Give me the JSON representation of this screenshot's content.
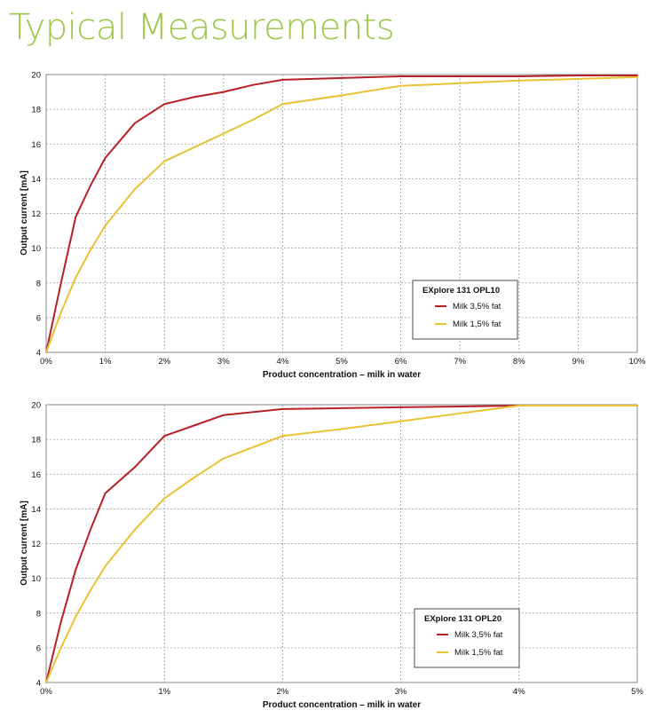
{
  "page": {
    "title": "Typical Measurements"
  },
  "colors": {
    "title_green": "#9dc64a",
    "series_dark": "#b72025",
    "series_light": "#e8c232",
    "grid": "#9a9a9a",
    "frame": "#888888"
  },
  "chart_data": [
    {
      "type": "line",
      "title": "",
      "xlabel": "Product concentration – milk in water",
      "ylabel": "Output current [mA]",
      "xlim": [
        0,
        10
      ],
      "ylim": [
        4,
        20
      ],
      "x_ticks": [
        0,
        1,
        2,
        3,
        4,
        5,
        6,
        7,
        8,
        9,
        10
      ],
      "x_tick_labels": [
        "0%",
        "1%",
        "2%",
        "3%",
        "4%",
        "5%",
        "6%",
        "7%",
        "8%",
        "9%",
        "10%"
      ],
      "y_ticks": [
        4,
        6,
        8,
        10,
        12,
        14,
        16,
        18,
        20
      ],
      "y_tick_labels": [
        "4",
        "6",
        "8",
        "10",
        "12",
        "14",
        "16",
        "18",
        "20"
      ],
      "grid": true,
      "legend": {
        "title": "EXplore 131 OPL10",
        "position": "bottom-right"
      },
      "series": [
        {
          "name": "Milk 3,5% fat",
          "x": [
            0,
            0.25,
            0.5,
            0.75,
            1,
            1.25,
            1.5,
            2,
            2.5,
            3,
            3.5,
            4,
            5,
            6,
            7,
            8,
            9,
            10
          ],
          "y": [
            4,
            8,
            11.8,
            13.6,
            15.2,
            16.2,
            17.2,
            18.3,
            18.7,
            19.0,
            19.4,
            19.7,
            19.8,
            19.9,
            19.9,
            19.9,
            19.95,
            19.95
          ]
        },
        {
          "name": "Milk 1,5% fat",
          "x": [
            0,
            0.25,
            0.5,
            0.75,
            1,
            1.5,
            2,
            2.5,
            3,
            3.5,
            4,
            5,
            6,
            7,
            8,
            9,
            10
          ],
          "y": [
            4,
            6.3,
            8.3,
            9.9,
            11.3,
            13.4,
            15.0,
            15.8,
            16.6,
            17.4,
            18.3,
            18.8,
            19.35,
            19.5,
            19.65,
            19.75,
            19.85
          ]
        }
      ]
    },
    {
      "type": "line",
      "title": "",
      "xlabel": "Product concentration – milk in water",
      "ylabel": "Output current [mA]",
      "xlim": [
        0,
        5
      ],
      "ylim": [
        4,
        20
      ],
      "x_ticks": [
        0,
        1,
        2,
        3,
        4,
        5
      ],
      "x_tick_labels": [
        "0%",
        "1%",
        "2%",
        "3%",
        "4%",
        "5%"
      ],
      "y_ticks": [
        4,
        6,
        8,
        10,
        12,
        14,
        16,
        18,
        20
      ],
      "y_tick_labels": [
        "4",
        "6",
        "8",
        "10",
        "12",
        "14",
        "16",
        "18",
        "20"
      ],
      "grid": true,
      "legend": {
        "title": "EXplore 131 OPL20",
        "position": "bottom-right"
      },
      "series": [
        {
          "name": "Milk 3,5% fat",
          "x": [
            0,
            0.125,
            0.25,
            0.375,
            0.5,
            0.75,
            1,
            1.25,
            1.5,
            2,
            2.5,
            3,
            3.5,
            4,
            4.5,
            5
          ],
          "y": [
            4,
            7.5,
            10.5,
            12.8,
            14.9,
            16.4,
            18.2,
            18.8,
            19.4,
            19.75,
            19.8,
            19.85,
            19.9,
            19.95,
            19.95,
            19.95
          ]
        },
        {
          "name": "Milk 1,5% fat",
          "x": [
            0,
            0.125,
            0.25,
            0.375,
            0.5,
            0.75,
            1,
            1.25,
            1.5,
            2,
            2.5,
            3,
            3.5,
            4,
            4.5,
            5
          ],
          "y": [
            4,
            6.0,
            7.8,
            9.3,
            10.7,
            12.8,
            14.6,
            15.8,
            16.9,
            18.2,
            18.6,
            19.05,
            19.5,
            19.95,
            19.95,
            19.95
          ]
        }
      ]
    }
  ]
}
